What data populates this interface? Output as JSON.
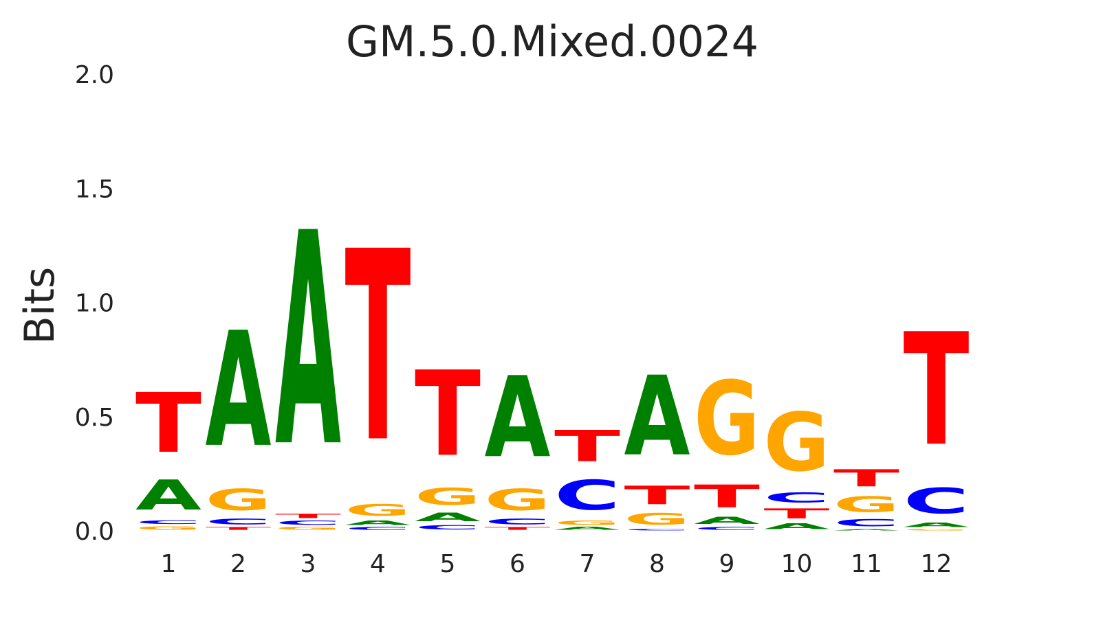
{
  "chart_data": {
    "type": "sequence-logo",
    "title": "GM.5.0.Mixed.0024",
    "xlabel": "",
    "ylabel": "Bits",
    "ylim": [
      0,
      2.0
    ],
    "yticks": [
      "0.0",
      "0.5",
      "1.0",
      "1.5",
      "2.0"
    ],
    "grid": false,
    "colors": {
      "A": "#008000",
      "C": "#0000ff",
      "G": "#ffa500",
      "T": "#ff0000"
    },
    "positions": [
      {
        "label": "1",
        "stack": [
          {
            "base": "G",
            "bits": 0.025
          },
          {
            "base": "C",
            "bits": 0.025
          },
          {
            "base": "A",
            "bits": 0.21
          },
          {
            "base": "T",
            "bits": 0.42
          }
        ]
      },
      {
        "label": "2",
        "stack": [
          {
            "base": "T",
            "bits": 0.02
          },
          {
            "base": "C",
            "bits": 0.04
          },
          {
            "base": "G",
            "bits": 0.15
          },
          {
            "base": "A",
            "bits": 0.81
          }
        ]
      },
      {
        "label": "3",
        "stack": [
          {
            "base": "G",
            "bits": 0.02
          },
          {
            "base": "C",
            "bits": 0.03
          },
          {
            "base": "T",
            "bits": 0.03
          },
          {
            "base": "A",
            "bits": 1.5
          }
        ]
      },
      {
        "label": "4",
        "stack": [
          {
            "base": "C",
            "bits": 0.02
          },
          {
            "base": "A",
            "bits": 0.03
          },
          {
            "base": "G",
            "bits": 0.08
          },
          {
            "base": "T",
            "bits": 1.34
          }
        ]
      },
      {
        "label": "5",
        "stack": [
          {
            "base": "C",
            "bits": 0.03
          },
          {
            "base": "A",
            "bits": 0.06
          },
          {
            "base": "G",
            "bits": 0.12
          },
          {
            "base": "T",
            "bits": 0.6
          }
        ]
      },
      {
        "label": "6",
        "stack": [
          {
            "base": "T",
            "bits": 0.02
          },
          {
            "base": "C",
            "bits": 0.04
          },
          {
            "base": "G",
            "bits": 0.15
          },
          {
            "base": "A",
            "bits": 0.57
          }
        ]
      },
      {
        "label": "7",
        "stack": [
          {
            "base": "A",
            "bits": 0.02
          },
          {
            "base": "G",
            "bits": 0.03
          },
          {
            "base": "C",
            "bits": 0.21
          },
          {
            "base": "T",
            "bits": 0.22
          }
        ]
      },
      {
        "label": "8",
        "stack": [
          {
            "base": "C",
            "bits": 0.01
          },
          {
            "base": "G",
            "bits": 0.08
          },
          {
            "base": "T",
            "bits": 0.13
          },
          {
            "base": "A",
            "bits": 0.56
          }
        ]
      },
      {
        "label": "9",
        "stack": [
          {
            "base": "C",
            "bits": 0.02
          },
          {
            "base": "A",
            "bits": 0.05
          },
          {
            "base": "T",
            "bits": 0.16
          },
          {
            "base": "G",
            "bits": 0.52
          }
        ]
      },
      {
        "label": "10",
        "stack": [
          {
            "base": "A",
            "bits": 0.04
          },
          {
            "base": "T",
            "bits": 0.07
          },
          {
            "base": "C",
            "bits": 0.07
          },
          {
            "base": "G",
            "bits": 0.41
          }
        ]
      },
      {
        "label": "11",
        "stack": [
          {
            "base": "A",
            "bits": 0.01
          },
          {
            "base": "C",
            "bits": 0.05
          },
          {
            "base": "G",
            "bits": 0.11
          },
          {
            "base": "T",
            "bits": 0.12
          }
        ]
      },
      {
        "label": "12",
        "stack": [
          {
            "base": "G",
            "bits": 0.01
          },
          {
            "base": "A",
            "bits": 0.03
          },
          {
            "base": "C",
            "bits": 0.18
          },
          {
            "base": "T",
            "bits": 0.79
          }
        ]
      }
    ]
  }
}
